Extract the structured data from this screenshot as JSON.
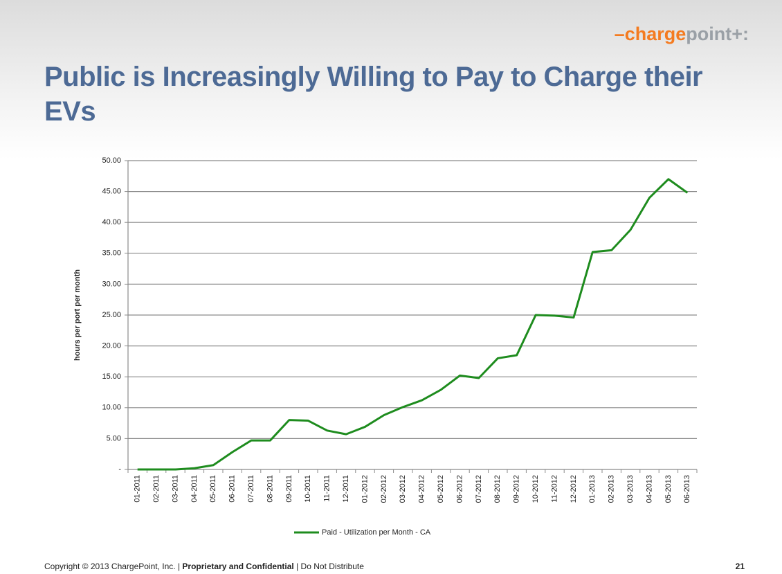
{
  "logo": {
    "first": "charge",
    "second": "point"
  },
  "footer": {
    "start": "Copyright © 2013 ChargePoint, Inc. | ",
    "bold": "Proprietary and Confidential",
    "end": " | Do Not Distribute"
  },
  "page_number": "21",
  "chart_data": {
    "type": "line",
    "title": "Public is Increasingly Willing to Pay to Charge their EVs",
    "y_label": "hours per port per month",
    "categories": [
      "01-2011",
      "02-2011",
      "03-2011",
      "04-2011",
      "05-2011",
      "06-2011",
      "07-2011",
      "08-2011",
      "09-2011",
      "10-2011",
      "11-2011",
      "12-2011",
      "01-2012",
      "02-2012",
      "03-2012",
      "04-2012",
      "05-2012",
      "06-2012",
      "07-2012",
      "08-2012",
      "09-2012",
      "10-2012",
      "11-2012",
      "12-2012",
      "01-2013",
      "02-2013",
      "03-2013",
      "04-2013",
      "05-2013",
      "06-2013"
    ],
    "series": [
      {
        "name": "Paid - Utilization per Month - CA",
        "color": "#1e8c1e",
        "values": [
          0,
          0,
          0,
          0.2,
          0.7,
          2.8,
          4.7,
          4.7,
          8.0,
          7.9,
          6.3,
          5.7,
          6.9,
          8.8,
          10.1,
          11.2,
          12.9,
          15.2,
          14.8,
          18.0,
          18.5,
          25.0,
          24.9,
          24.6,
          35.2,
          35.5,
          38.8,
          44.0,
          47.0,
          44.8
        ]
      }
    ],
    "ylim": [
      0,
      50
    ],
    "yticks": [
      {
        "value": 0,
        "label": "-"
      },
      {
        "value": 5,
        "label": "5.00"
      },
      {
        "value": 10,
        "label": "10.00"
      },
      {
        "value": 15,
        "label": "15.00"
      },
      {
        "value": 20,
        "label": "20.00"
      },
      {
        "value": 25,
        "label": "25.00"
      },
      {
        "value": 30,
        "label": "30.00"
      },
      {
        "value": 35,
        "label": "35.00"
      },
      {
        "value": 40,
        "label": "40.00"
      },
      {
        "value": 45,
        "label": "45.00"
      },
      {
        "value": 50,
        "label": "50.00"
      }
    ],
    "grid": true,
    "legend": "bottom"
  }
}
